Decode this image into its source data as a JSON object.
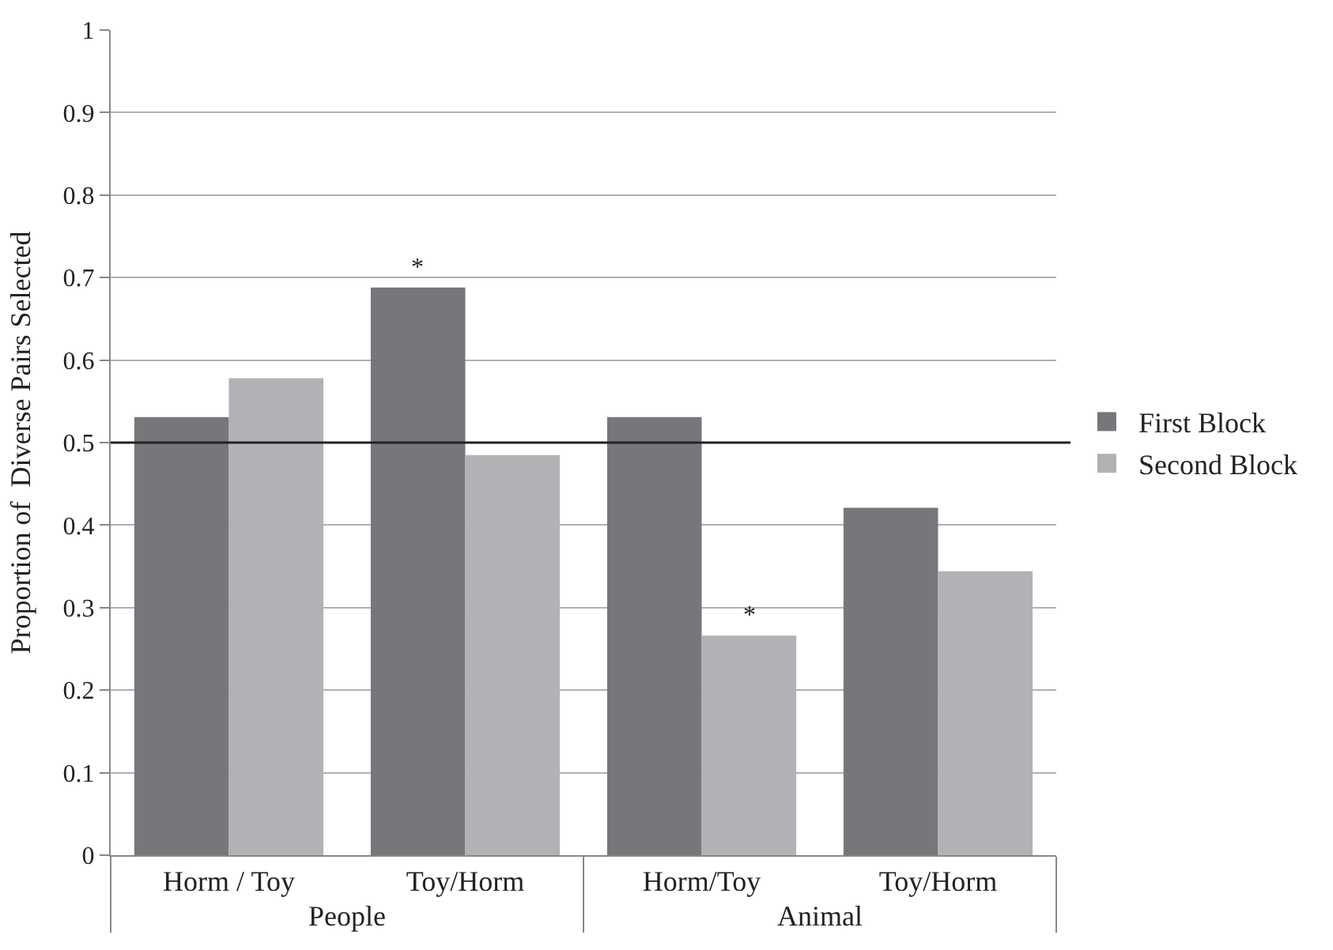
{
  "chart_data": {
    "type": "bar",
    "ylabel": "Proportion of  Diverse Pairs Selected",
    "categories": [
      "Horm / Toy",
      "Toy/Horm",
      "Horm/Toy",
      "Toy/Horm"
    ],
    "series": [
      {
        "name": "First Block",
        "color": "#76777b",
        "values": [
          0.531,
          0.688,
          0.531,
          0.421
        ]
      },
      {
        "name": "Second Block",
        "color": "#b1b2b6",
        "values": [
          0.578,
          0.485,
          0.266,
          0.344
        ]
      }
    ],
    "ylim": [
      0,
      1
    ],
    "yticks": [
      0,
      0.1,
      0.2,
      0.3,
      0.4,
      0.5,
      0.6,
      0.7,
      0.8,
      0.9,
      1
    ],
    "ref_lines": [
      {
        "axis": "y",
        "value": 0.5,
        "color": "#222222"
      }
    ],
    "annotations": [
      "People",
      "Animal",
      {
        "text": "*",
        "x": "Toy/Horm",
        "y": 0.688
      },
      {
        "text": "*",
        "x": "Horm/Toy",
        "y": 0.266
      }
    ],
    "grid": "y",
    "legend": "right"
  }
}
